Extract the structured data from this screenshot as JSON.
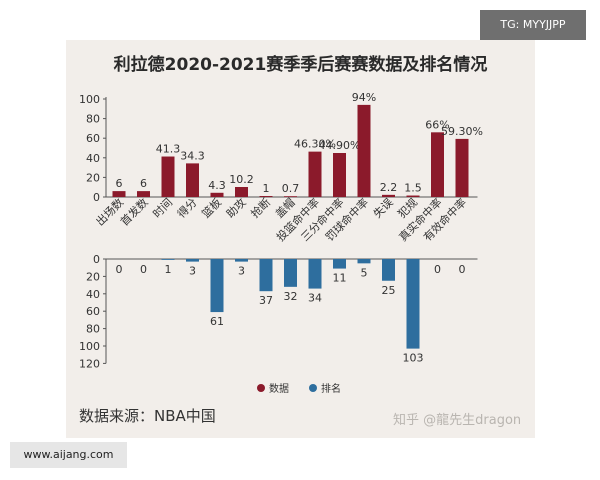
{
  "title": "利拉德2020-2021赛季季后赛赛数据及排名情况",
  "source_text": "数据来源：NBA中国",
  "watermark_zh": "知乎 @龍先生dragon",
  "tag_text": "TG: MYYJJPP",
  "site_text": "www.aijang.com",
  "colors": {
    "data": "#8b1a2b",
    "rank": "#2e6e9e",
    "background": "#f2eeea"
  },
  "chart_data": [
    {
      "type": "bar",
      "categories": [
        "出场数",
        "首发数",
        "时间",
        "得分",
        "篮板",
        "助攻",
        "抢断",
        "盖帽",
        "投篮命中率",
        "三分命中率",
        "罚球命中率",
        "失误",
        "犯规",
        "真实命中率",
        "有效命中率"
      ],
      "series": [
        {
          "name": "数据",
          "values": [
            6,
            6,
            41.3,
            34.3,
            4.3,
            10.2,
            1,
            0.7,
            46.3,
            44.9,
            94,
            2.2,
            1.5,
            66,
            59.3
          ],
          "labels": [
            "6",
            "6",
            "41.3",
            "34.3",
            "4.3",
            "10.2",
            "1",
            "0.7",
            "46.30%",
            "44.90%",
            "94%",
            "2.2",
            "1.5",
            "66%",
            "59.30%"
          ]
        }
      ],
      "ylim": [
        0,
        100
      ],
      "yticks": [
        0,
        20,
        40,
        60,
        80,
        100
      ],
      "grid": false
    },
    {
      "type": "bar",
      "categories": [
        "出场数",
        "首发数",
        "时间",
        "得分",
        "篮板",
        "助攻",
        "抢断",
        "盖帽",
        "投篮命中率",
        "三分命中率",
        "罚球命中率",
        "失误",
        "犯规",
        "真实命中率",
        "有效命中率"
      ],
      "series": [
        {
          "name": "排名",
          "values": [
            0,
            0,
            1,
            3,
            61,
            3,
            37,
            32,
            34,
            11,
            5,
            25,
            103,
            0,
            0
          ],
          "labels": [
            "0",
            "0",
            "1",
            "3",
            "61",
            "3",
            "37",
            "32",
            "34",
            "11",
            "5",
            "25",
            "103",
            "0",
            "0"
          ]
        }
      ],
      "ylim": [
        0,
        120
      ],
      "yticks": [
        0,
        20,
        40,
        60,
        80,
        100,
        120
      ],
      "inverted": true,
      "grid": false
    }
  ],
  "legend": {
    "position": "bottom-center",
    "items": [
      "数据",
      "排名"
    ]
  }
}
